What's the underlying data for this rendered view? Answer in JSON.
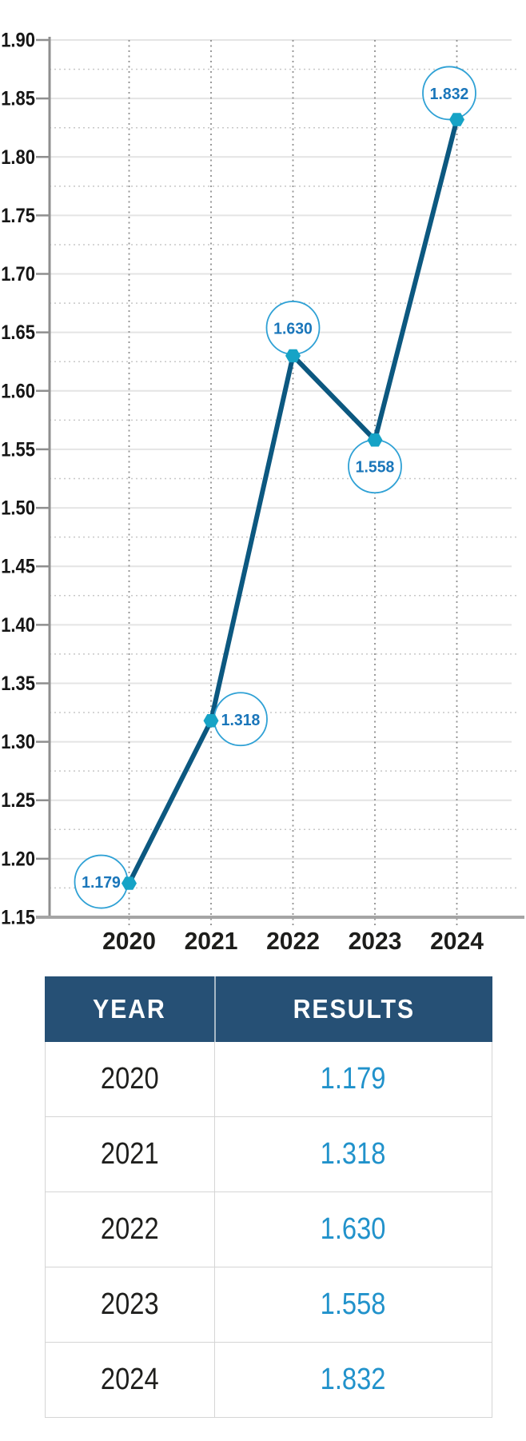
{
  "chart_data": {
    "type": "line",
    "title": "",
    "x_categories": [
      "2020",
      "2021",
      "2022",
      "2023",
      "2024"
    ],
    "series": [
      {
        "name": "RESULTS",
        "values": [
          1.179,
          1.318,
          1.63,
          1.558,
          1.832
        ]
      }
    ],
    "point_labels": [
      "1.179",
      "1.318",
      "1.630",
      "1.558",
      "1.832"
    ],
    "y_ticks": [
      "1.90",
      "1.85",
      "1.80",
      "1.75",
      "1.70",
      "1.65",
      "1.60",
      "1.55",
      "1.50",
      "1.45",
      "1.40",
      "1.35",
      "1.30",
      "1.25",
      "1.20",
      "1.15"
    ],
    "ylim": [
      1.15,
      1.9
    ],
    "legend": "none",
    "grid": {
      "horizontal_major": "solid",
      "horizontal_minor": "dotted",
      "vertical_year_lines": "dotted"
    },
    "colors": {
      "line": "#0c5880",
      "marker": "#16a3c6",
      "badge_border": "#2fa1d5",
      "badge_fill": "#ffffff",
      "badge_text": "#1a76ba",
      "axis": "#8f8f8f",
      "bottom_axis": "#a5a5a5",
      "grid_major": "#e4e4e4",
      "grid_minor": "#c8c8c8",
      "grid_vertical": "#8f8f8f",
      "x_label": "#1d1d1b",
      "y_label": "#161616"
    }
  },
  "table": {
    "headers": [
      "YEAR",
      "RESULTS"
    ],
    "header_bg": "#265075",
    "header_text_color": "#ffffff",
    "year_color": "#1f1f1d",
    "result_color": "#2192cb",
    "rows": [
      [
        "2020",
        "1.179"
      ],
      [
        "2021",
        "1.318"
      ],
      [
        "2022",
        "1.630"
      ],
      [
        "2023",
        "1.558"
      ],
      [
        "2024",
        "1.832"
      ]
    ]
  }
}
